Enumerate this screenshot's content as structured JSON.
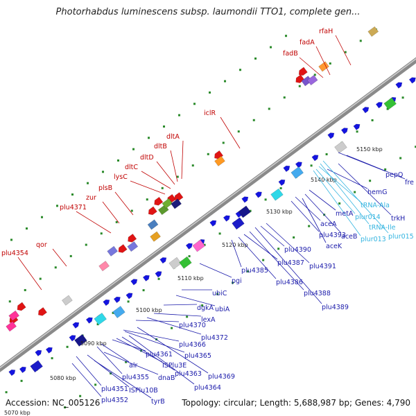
{
  "title": "Photorhabdus luminescens subsp. laumondii TTO1, complete gen...",
  "footer": {
    "accession": "Accession: NC_005126",
    "topology": "Topology: circular; Length: 5,688,987 bp; Genes: 4,790"
  },
  "ticks": [
    "5070 kbp",
    "5080 kbp",
    "5090 kbp",
    "5100 kbp",
    "5110 kbp",
    "5120 kbp",
    "5130 kbp",
    "5140 kbp",
    "5150 kbp"
  ],
  "labels_red": [
    "plu4354",
    "qor",
    "plu4371",
    "zur",
    "plsB",
    "lysC",
    "dltC",
    "dltD",
    "dltB",
    "dltA",
    "iclR",
    "fadB",
    "fadA",
    "rfaH"
  ],
  "labels_blue": [
    "plu4351",
    "plu4352",
    "tyrB",
    "ISPlu10B",
    "dnaB",
    "plu4355",
    "alr",
    "plu4361",
    "ISPlu3E",
    "plu4363",
    "plu4364",
    "plu4365",
    "plu4366",
    "plu4369",
    "plu4370",
    "plu4372",
    "lexA",
    "dgkA",
    "ubiA",
    "ubiC",
    "pgi",
    "plu4385",
    "plu4386",
    "plu4387",
    "plu4388",
    "plu4389",
    "plu4390",
    "plu4391",
    "plu4393",
    "aceA",
    "aceB",
    "aceK",
    "metA",
    "hemG",
    "pepQ",
    "trkH",
    "fre"
  ],
  "labels_cyan": [
    "tRNA-Ala",
    "plur014",
    "tRNA-Ile",
    "plur013",
    "plur015"
  ],
  "colors": {
    "backbone": "#8a8a8a",
    "gene_forward": "#1414e0",
    "gene_reverse": "#e01414",
    "dots": "#2a8a2a",
    "label_red": "#c00000",
    "label_blue": "#1a1aaa",
    "label_cyan": "#33b4e0"
  }
}
